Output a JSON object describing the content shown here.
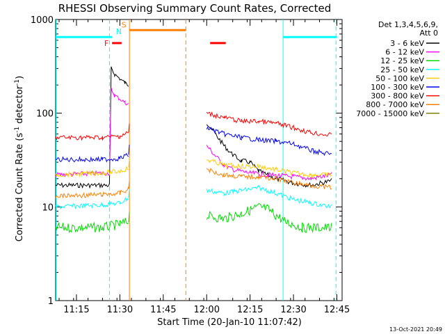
{
  "chart_data": {
    "type": "line",
    "title": "RHESSI Observing Summary Count Rates, Corrected",
    "xlabel": "Start Time (20-Jan-10 11:07:42)",
    "ylabel_main": "Corrected Count Rate (s",
    "ylabel_sup1": "-1",
    "ylabel_mid": " detector",
    "ylabel_sup2": "-1",
    "ylabel_end": ")",
    "y_scale": "log",
    "ylim": [
      1,
      1000
    ],
    "xlim_minutes": [
      11.13,
      12.78
    ],
    "y_ticks": [
      {
        "value": 1,
        "label": "1"
      },
      {
        "value": 10,
        "label": "10"
      },
      {
        "value": 100,
        "label": "100"
      },
      {
        "value": 1000,
        "label": "1000"
      }
    ],
    "x_ticks": [
      {
        "value": 11.25,
        "label": "11:15"
      },
      {
        "value": 11.5,
        "label": "11:30"
      },
      {
        "value": 11.75,
        "label": "11:45"
      },
      {
        "value": 12.0,
        "label": "12:00"
      },
      {
        "value": 12.25,
        "label": "12:15"
      },
      {
        "value": 12.5,
        "label": "12:30"
      },
      {
        "value": 12.75,
        "label": "12:45"
      }
    ],
    "legend_header": [
      "Det 1,3,4,5,6,9,",
      "Att 0"
    ],
    "legend_position": "right",
    "footer_date": "13-Oct-2021 20:49",
    "series": [
      {
        "name": "3 - 6 keV",
        "color": "#000000",
        "pre": [
          [
            11.13,
            17
          ],
          [
            11.44,
            17
          ]
        ],
        "jump": [
          [
            11.45,
            300
          ],
          [
            11.47,
            260
          ],
          [
            11.53,
            210
          ],
          [
            11.55,
            200
          ]
        ],
        "post": [
          [
            12.0,
            80
          ],
          [
            12.05,
            60
          ],
          [
            12.1,
            45
          ],
          [
            12.15,
            36
          ],
          [
            12.2,
            31
          ],
          [
            12.25,
            30
          ],
          [
            12.3,
            24
          ],
          [
            12.4,
            20
          ],
          [
            12.5,
            18
          ],
          [
            12.6,
            17
          ],
          [
            12.72,
            19
          ]
        ]
      },
      {
        "name": "6 - 12 keV",
        "color": "#ff00ff",
        "pre": [
          [
            11.13,
            22
          ],
          [
            11.44,
            23
          ]
        ],
        "jump": [
          [
            11.45,
            180
          ],
          [
            11.47,
            155
          ],
          [
            11.53,
            130
          ],
          [
            11.55,
            125
          ]
        ],
        "post": [
          [
            12.0,
            45
          ],
          [
            12.05,
            35
          ],
          [
            12.1,
            28
          ],
          [
            12.15,
            25
          ],
          [
            12.25,
            23
          ],
          [
            12.35,
            22
          ],
          [
            12.5,
            21
          ],
          [
            12.6,
            20
          ],
          [
            12.72,
            22
          ]
        ]
      },
      {
        "name": "12 - 25 keV",
        "color": "#00dd00",
        "pre": [
          [
            11.13,
            6
          ],
          [
            11.4,
            6
          ],
          [
            11.5,
            6.5
          ],
          [
            11.55,
            7
          ]
        ],
        "jump": [],
        "post": [
          [
            12.0,
            8
          ],
          [
            12.1,
            7.5
          ],
          [
            12.2,
            8.5
          ],
          [
            12.3,
            10
          ],
          [
            12.35,
            9.5
          ],
          [
            12.45,
            7
          ],
          [
            12.55,
            6
          ],
          [
            12.72,
            6
          ]
        ]
      },
      {
        "name": "25 - 50 keV",
        "color": "#00ffff",
        "pre": [
          [
            11.13,
            10
          ],
          [
            11.4,
            10.5
          ],
          [
            11.5,
            11
          ],
          [
            11.55,
            12.5
          ]
        ],
        "jump": [],
        "post": [
          [
            12.0,
            15
          ],
          [
            12.1,
            14
          ],
          [
            12.2,
            15
          ],
          [
            12.3,
            16
          ],
          [
            12.4,
            14
          ],
          [
            12.5,
            12
          ],
          [
            12.6,
            11
          ],
          [
            12.72,
            10
          ]
        ]
      },
      {
        "name": "50 - 100 keV",
        "color": "#ffcc00",
        "pre": [
          [
            11.13,
            22
          ],
          [
            11.4,
            23
          ],
          [
            11.5,
            24
          ],
          [
            11.55,
            26
          ]
        ],
        "jump": [],
        "post": [
          [
            12.0,
            32
          ],
          [
            12.1,
            28
          ],
          [
            12.2,
            27
          ],
          [
            12.3,
            27
          ],
          [
            12.4,
            25
          ],
          [
            12.5,
            23
          ],
          [
            12.6,
            22
          ],
          [
            12.72,
            22
          ]
        ]
      },
      {
        "name": "100 - 300 keV",
        "color": "#0000ff",
        "pre": [
          [
            11.13,
            32
          ],
          [
            11.4,
            32
          ],
          [
            11.5,
            33
          ],
          [
            11.55,
            36
          ]
        ],
        "jump": [],
        "post": [
          [
            12.0,
            70
          ],
          [
            12.1,
            60
          ],
          [
            12.2,
            55
          ],
          [
            12.3,
            52
          ],
          [
            12.4,
            50
          ],
          [
            12.5,
            47
          ],
          [
            12.6,
            40
          ],
          [
            12.72,
            36
          ]
        ]
      },
      {
        "name": "300 - 800 keV",
        "color": "#ff0000",
        "pre": [
          [
            11.13,
            55
          ],
          [
            11.4,
            55
          ],
          [
            11.5,
            57
          ],
          [
            11.55,
            62
          ]
        ],
        "jump": [],
        "post": [
          [
            12.0,
            100
          ],
          [
            12.1,
            90
          ],
          [
            12.2,
            82
          ],
          [
            12.3,
            82
          ],
          [
            12.4,
            78
          ],
          [
            12.5,
            70
          ],
          [
            12.6,
            62
          ],
          [
            12.72,
            58
          ]
        ]
      },
      {
        "name": "800 - 7000 keV",
        "color": "#ff8000",
        "pre": [
          [
            11.13,
            13
          ],
          [
            11.4,
            13.5
          ],
          [
            11.5,
            14
          ],
          [
            11.55,
            15.5
          ]
        ],
        "jump": [],
        "post": [
          [
            12.0,
            25
          ],
          [
            12.1,
            22
          ],
          [
            12.2,
            21
          ],
          [
            12.3,
            21
          ],
          [
            12.4,
            20
          ],
          [
            12.5,
            18
          ],
          [
            12.6,
            17
          ],
          [
            12.72,
            16
          ]
        ]
      },
      {
        "name": "7000 - 15000 keV",
        "color": "#808000",
        "pre": [],
        "jump": [],
        "post": []
      }
    ],
    "status_markers": [
      {
        "label": "",
        "color": "#00ffff",
        "x1": 11.13,
        "x2": 11.455,
        "y": 650
      },
      {
        "label": "N",
        "color": "#00ffff",
        "x1": 11.47,
        "x2": 11.47,
        "y": 650
      },
      {
        "label": "F",
        "color": "#ff0000",
        "x1": 11.455,
        "x2": 11.51,
        "y": 560
      },
      {
        "label": "S",
        "color": "#ff8000",
        "x1": 11.555,
        "x2": 11.88,
        "y": 770
      },
      {
        "label": "",
        "color": "#ff0000",
        "x1": 12.02,
        "x2": 12.11,
        "y": 560
      },
      {
        "label": "",
        "color": "#00ffff",
        "x1": 12.44,
        "x2": 12.75,
        "y": 650
      }
    ],
    "vertical_lines": [
      {
        "x": 11.44,
        "color": "#00ffff",
        "style": "dashed"
      },
      {
        "x": 11.555,
        "color": "#ff8000",
        "style": "solid"
      },
      {
        "x": 11.88,
        "color": "#ff8000",
        "style": "dashed"
      },
      {
        "x": 12.44,
        "color": "#00ffff",
        "style": "solid"
      },
      {
        "x": 12.745,
        "color": "#00ffff",
        "style": "dashed"
      },
      {
        "x": 11.133,
        "color": "#00ffff",
        "style": "solid"
      }
    ]
  }
}
